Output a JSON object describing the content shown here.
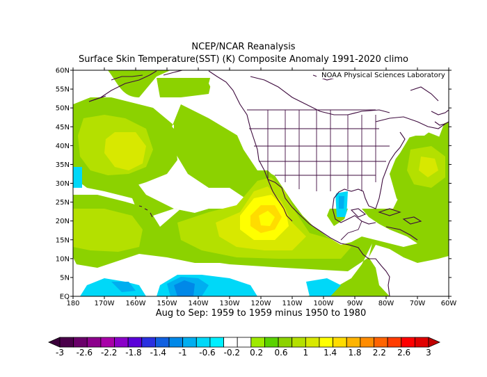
{
  "title_line1": "NCEP/NCAR Reanalysis",
  "title_line2": "Surface Skin Temperature(SST) (K) Composite Anomaly 1991-2020 climo",
  "credit": "NOAA Physical Sciences Laboratory",
  "subtitle": "Aug to Sep: 1959 to 1959 minus 1950 to 1980",
  "map": {
    "lat_labels": [
      "60N",
      "55N",
      "50N",
      "45N",
      "40N",
      "35N",
      "30N",
      "25N",
      "20N",
      "15N",
      "10N",
      "5N",
      "EQ"
    ],
    "lon_labels": [
      "180",
      "170W",
      "160W",
      "150W",
      "140W",
      "130W",
      "120W",
      "110W",
      "100W",
      "90W",
      "80W",
      "70W",
      "60W"
    ]
  },
  "colorbar": {
    "labels": [
      "-3",
      "-2.6",
      "-2.2",
      "-1.8",
      "-1.4",
      "-1",
      "-0.6",
      "-0.2",
      "0.2",
      "0.6",
      "1",
      "1.4",
      "1.8",
      "2.2",
      "2.6",
      "3"
    ],
    "colors": [
      "#4a004a",
      "#6a006a",
      "#8c008c",
      "#a800a8",
      "#8a00c8",
      "#5a00d8",
      "#2a30e0",
      "#1060e0",
      "#0088e8",
      "#00aef0",
      "#00d8f8",
      "#00f0ff",
      "#ffffff",
      "#ffffff",
      "#9eea00",
      "#5ad200",
      "#8cd200",
      "#b4e000",
      "#d8e800",
      "#ffff00",
      "#ffdc00",
      "#ffb400",
      "#ff8c00",
      "#ff6400",
      "#ff3c00",
      "#ff0000",
      "#e00000"
    ]
  }
}
